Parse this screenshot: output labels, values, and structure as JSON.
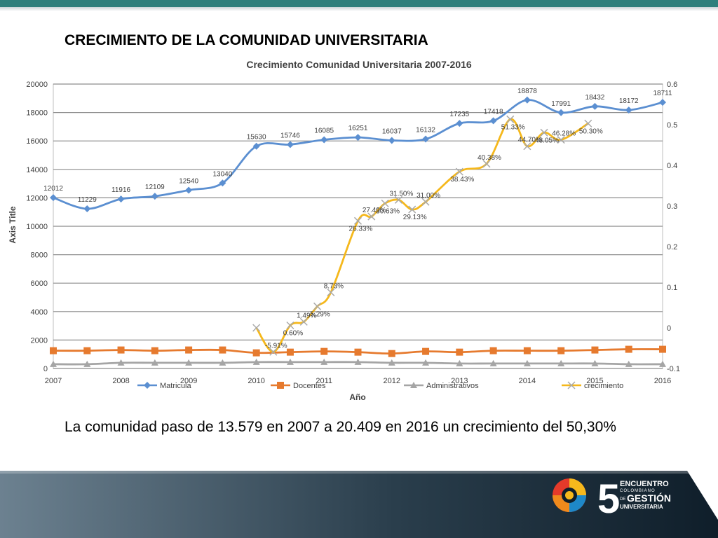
{
  "slide": {
    "title": "CRECIMIENTO DE LA COMUNIDAD UNIVERSITARIA",
    "summary": "La comunidad  paso de 13.579 en 2007 a 20.409 en 2016 un crecimiento del 50,30%"
  },
  "logo": {
    "number": "5",
    "line1": "ENCUENTRO",
    "line2": "COLOMBIANO",
    "line3_small": "DE",
    "line3": "GESTIÓN",
    "line4": "UNIVERSITARIA"
  },
  "colors": {
    "matricula": "#5b8fd1",
    "docentes": "#e67a2e",
    "administrativos": "#a5a5a5",
    "crecimiento": "#f5b81c",
    "accent": "#2e7f7c"
  },
  "chart_data": {
    "type": "line",
    "title": "Crecimiento Comunidad Universitaria 2007-2016",
    "xlabel": "Año",
    "ylabel": "Axis Title",
    "x_tick_labels": [
      "2007",
      "2008",
      "2009",
      "2010",
      "2011",
      "2012",
      "2013",
      "2014",
      "2015",
      "2016"
    ],
    "ylim": [
      0,
      20000
    ],
    "y_ticks": [
      "0",
      "2000",
      "4000",
      "6000",
      "8000",
      "10000",
      "12000",
      "14000",
      "16000",
      "18000",
      "20000"
    ],
    "y2lim": [
      -0.1,
      0.6
    ],
    "y2_ticks": [
      "-0.1",
      "0",
      "0.1",
      "0.2",
      "0.3",
      "0.4",
      "0.5",
      "0.6"
    ],
    "grid": true,
    "legend": "bottom",
    "series": [
      {
        "name": "Matricula",
        "axis": "left",
        "values": [
          12012,
          11229,
          11916,
          12109,
          12540,
          13040,
          15630,
          15746,
          16085,
          16251,
          16037,
          16132,
          17235,
          17418,
          18878,
          17991,
          18432,
          18172,
          18711
        ],
        "labels": [
          "12012",
          "11229",
          "11916",
          "12109",
          "12540",
          "13040",
          "15630",
          "15746",
          "16085",
          "16251",
          "16037",
          "16132",
          "17235",
          "17418",
          "18878",
          "17991",
          "18432",
          "18172",
          "18711"
        ]
      },
      {
        "name": "Docentes",
        "axis": "left",
        "values": [
          1250,
          1250,
          1300,
          1250,
          1300,
          1300,
          1100,
          1150,
          1200,
          1150,
          1050,
          1200,
          1150,
          1250,
          1250,
          1250,
          1300,
          1350,
          1350
        ]
      },
      {
        "name": "Administrativos",
        "axis": "left",
        "values": [
          300,
          300,
          400,
          400,
          400,
          400,
          450,
          450,
          450,
          450,
          400,
          400,
          350,
          350,
          350,
          350,
          350,
          300,
          300
        ]
      },
      {
        "name": "crecimiento",
        "axis": "right",
        "values": [
          null,
          null,
          null,
          null,
          null,
          null,
          0.0,
          -0.0591,
          0.006,
          0.0149,
          0.0529,
          0.0873,
          0.2633,
          0.274,
          0.3063,
          0.315,
          0.2913,
          0.31,
          0.3843,
          0.4038,
          0.5133,
          0.447,
          0.4805,
          0.4628,
          0.503
        ],
        "x_index": [
          null,
          null,
          null,
          null,
          null,
          null,
          6,
          6.5,
          7,
          7.4,
          7.8,
          8.2,
          9,
          9.4,
          9.8,
          10.2,
          10.6,
          11,
          12,
          12.8,
          13.5,
          14,
          14.5,
          15,
          15.8
        ],
        "labels": [
          "",
          "",
          "",
          "",
          "",
          "",
          "",
          "-5.91%",
          "0.60%",
          "1.49%",
          "5.29%",
          "8.73%",
          "26.33%",
          "27.40%",
          "30.63%",
          "31.50%",
          "29.13%",
          "31.00%",
          "38.43%",
          "40.38%",
          "51.33%",
          "44.70%",
          "48.05%",
          "46.28%",
          "50.30%"
        ]
      }
    ]
  }
}
